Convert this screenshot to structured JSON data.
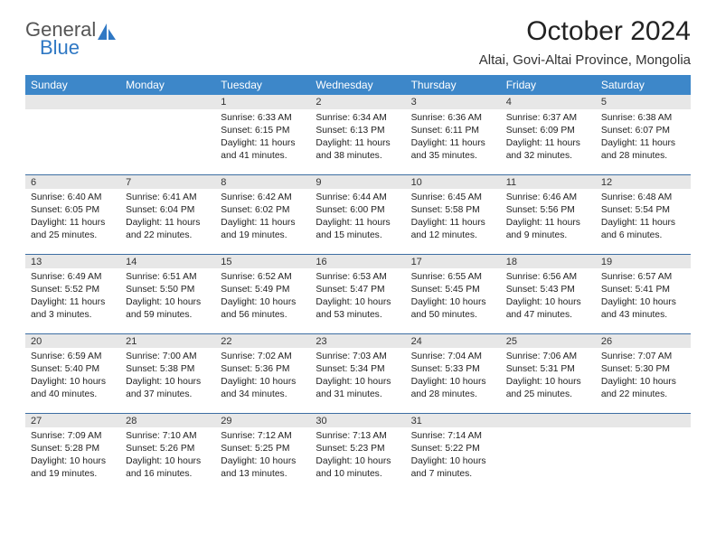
{
  "brand": {
    "name1": "General",
    "name2": "Blue"
  },
  "title": "October 2024",
  "location": "Altai, Govi-Altai Province, Mongolia",
  "colors": {
    "header_bg": "#3d87c9",
    "header_text": "#ffffff",
    "daynum_bg": "#e7e7e7",
    "row_divider": "#3d6ea3",
    "logo_gray": "#555555",
    "logo_blue": "#2f78c4",
    "page_bg": "#ffffff"
  },
  "day_headers": [
    "Sunday",
    "Monday",
    "Tuesday",
    "Wednesday",
    "Thursday",
    "Friday",
    "Saturday"
  ],
  "weeks": [
    [
      {
        "n": "",
        "sr": "",
        "ss": "",
        "dl": ""
      },
      {
        "n": "",
        "sr": "",
        "ss": "",
        "dl": ""
      },
      {
        "n": "1",
        "sr": "Sunrise: 6:33 AM",
        "ss": "Sunset: 6:15 PM",
        "dl": "Daylight: 11 hours and 41 minutes."
      },
      {
        "n": "2",
        "sr": "Sunrise: 6:34 AM",
        "ss": "Sunset: 6:13 PM",
        "dl": "Daylight: 11 hours and 38 minutes."
      },
      {
        "n": "3",
        "sr": "Sunrise: 6:36 AM",
        "ss": "Sunset: 6:11 PM",
        "dl": "Daylight: 11 hours and 35 minutes."
      },
      {
        "n": "4",
        "sr": "Sunrise: 6:37 AM",
        "ss": "Sunset: 6:09 PM",
        "dl": "Daylight: 11 hours and 32 minutes."
      },
      {
        "n": "5",
        "sr": "Sunrise: 6:38 AM",
        "ss": "Sunset: 6:07 PM",
        "dl": "Daylight: 11 hours and 28 minutes."
      }
    ],
    [
      {
        "n": "6",
        "sr": "Sunrise: 6:40 AM",
        "ss": "Sunset: 6:05 PM",
        "dl": "Daylight: 11 hours and 25 minutes."
      },
      {
        "n": "7",
        "sr": "Sunrise: 6:41 AM",
        "ss": "Sunset: 6:04 PM",
        "dl": "Daylight: 11 hours and 22 minutes."
      },
      {
        "n": "8",
        "sr": "Sunrise: 6:42 AM",
        "ss": "Sunset: 6:02 PM",
        "dl": "Daylight: 11 hours and 19 minutes."
      },
      {
        "n": "9",
        "sr": "Sunrise: 6:44 AM",
        "ss": "Sunset: 6:00 PM",
        "dl": "Daylight: 11 hours and 15 minutes."
      },
      {
        "n": "10",
        "sr": "Sunrise: 6:45 AM",
        "ss": "Sunset: 5:58 PM",
        "dl": "Daylight: 11 hours and 12 minutes."
      },
      {
        "n": "11",
        "sr": "Sunrise: 6:46 AM",
        "ss": "Sunset: 5:56 PM",
        "dl": "Daylight: 11 hours and 9 minutes."
      },
      {
        "n": "12",
        "sr": "Sunrise: 6:48 AM",
        "ss": "Sunset: 5:54 PM",
        "dl": "Daylight: 11 hours and 6 minutes."
      }
    ],
    [
      {
        "n": "13",
        "sr": "Sunrise: 6:49 AM",
        "ss": "Sunset: 5:52 PM",
        "dl": "Daylight: 11 hours and 3 minutes."
      },
      {
        "n": "14",
        "sr": "Sunrise: 6:51 AM",
        "ss": "Sunset: 5:50 PM",
        "dl": "Daylight: 10 hours and 59 minutes."
      },
      {
        "n": "15",
        "sr": "Sunrise: 6:52 AM",
        "ss": "Sunset: 5:49 PM",
        "dl": "Daylight: 10 hours and 56 minutes."
      },
      {
        "n": "16",
        "sr": "Sunrise: 6:53 AM",
        "ss": "Sunset: 5:47 PM",
        "dl": "Daylight: 10 hours and 53 minutes."
      },
      {
        "n": "17",
        "sr": "Sunrise: 6:55 AM",
        "ss": "Sunset: 5:45 PM",
        "dl": "Daylight: 10 hours and 50 minutes."
      },
      {
        "n": "18",
        "sr": "Sunrise: 6:56 AM",
        "ss": "Sunset: 5:43 PM",
        "dl": "Daylight: 10 hours and 47 minutes."
      },
      {
        "n": "19",
        "sr": "Sunrise: 6:57 AM",
        "ss": "Sunset: 5:41 PM",
        "dl": "Daylight: 10 hours and 43 minutes."
      }
    ],
    [
      {
        "n": "20",
        "sr": "Sunrise: 6:59 AM",
        "ss": "Sunset: 5:40 PM",
        "dl": "Daylight: 10 hours and 40 minutes."
      },
      {
        "n": "21",
        "sr": "Sunrise: 7:00 AM",
        "ss": "Sunset: 5:38 PM",
        "dl": "Daylight: 10 hours and 37 minutes."
      },
      {
        "n": "22",
        "sr": "Sunrise: 7:02 AM",
        "ss": "Sunset: 5:36 PM",
        "dl": "Daylight: 10 hours and 34 minutes."
      },
      {
        "n": "23",
        "sr": "Sunrise: 7:03 AM",
        "ss": "Sunset: 5:34 PM",
        "dl": "Daylight: 10 hours and 31 minutes."
      },
      {
        "n": "24",
        "sr": "Sunrise: 7:04 AM",
        "ss": "Sunset: 5:33 PM",
        "dl": "Daylight: 10 hours and 28 minutes."
      },
      {
        "n": "25",
        "sr": "Sunrise: 7:06 AM",
        "ss": "Sunset: 5:31 PM",
        "dl": "Daylight: 10 hours and 25 minutes."
      },
      {
        "n": "26",
        "sr": "Sunrise: 7:07 AM",
        "ss": "Sunset: 5:30 PM",
        "dl": "Daylight: 10 hours and 22 minutes."
      }
    ],
    [
      {
        "n": "27",
        "sr": "Sunrise: 7:09 AM",
        "ss": "Sunset: 5:28 PM",
        "dl": "Daylight: 10 hours and 19 minutes."
      },
      {
        "n": "28",
        "sr": "Sunrise: 7:10 AM",
        "ss": "Sunset: 5:26 PM",
        "dl": "Daylight: 10 hours and 16 minutes."
      },
      {
        "n": "29",
        "sr": "Sunrise: 7:12 AM",
        "ss": "Sunset: 5:25 PM",
        "dl": "Daylight: 10 hours and 13 minutes."
      },
      {
        "n": "30",
        "sr": "Sunrise: 7:13 AM",
        "ss": "Sunset: 5:23 PM",
        "dl": "Daylight: 10 hours and 10 minutes."
      },
      {
        "n": "31",
        "sr": "Sunrise: 7:14 AM",
        "ss": "Sunset: 5:22 PM",
        "dl": "Daylight: 10 hours and 7 minutes."
      },
      {
        "n": "",
        "sr": "",
        "ss": "",
        "dl": ""
      },
      {
        "n": "",
        "sr": "",
        "ss": "",
        "dl": ""
      }
    ]
  ]
}
